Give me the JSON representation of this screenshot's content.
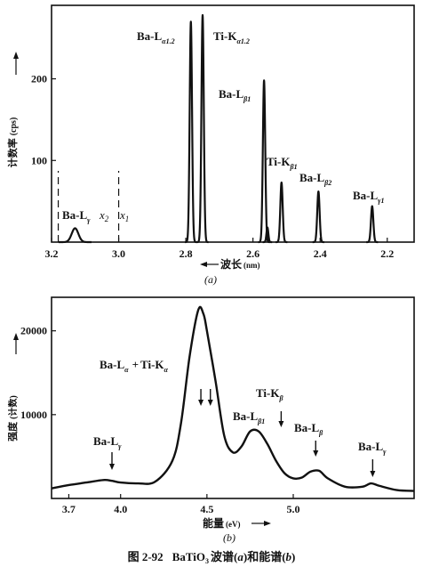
{
  "chart_data": [
    {
      "type": "line",
      "subtitle": "(a)",
      "xlabel": "波长",
      "xunit": "(nm)",
      "ylabel": "计数率",
      "yunit": "(cps)",
      "xlim": [
        3.2,
        2.12
      ],
      "ylim": [
        0,
        290
      ],
      "x_reversed": true,
      "x_ticks": [
        "3.2",
        "3.0",
        "2.8",
        "2.6",
        "2.4",
        "2.2"
      ],
      "y_ticks": [
        "100",
        "200"
      ],
      "marker_lines": [
        {
          "x": 3.18,
          "label": ""
        },
        {
          "x": 3.0,
          "label": ""
        }
      ],
      "marker_labels": [
        "x",
        "2",
        "x",
        "1"
      ],
      "peaks": [
        {
          "x": 3.13,
          "y": 17,
          "width": 0.014,
          "label": "Ba-L",
          "label_sub": "γ"
        },
        {
          "x": 2.785,
          "y": 270,
          "width": 0.005,
          "label": "Ba-L",
          "label_sub": "α1.2"
        },
        {
          "x": 2.75,
          "y": 278,
          "width": 0.005,
          "label": "Ti-K",
          "label_sub": "α1.2"
        },
        {
          "x": 2.567,
          "y": 198,
          "width": 0.005,
          "label": "Ba-L",
          "label_sub": "β1"
        },
        {
          "x": 2.557,
          "y": 18,
          "width": 0.004,
          "label": "",
          "label_sub": ""
        },
        {
          "x": 2.515,
          "y": 73,
          "width": 0.005,
          "label": "Ti-K",
          "label_sub": "β1"
        },
        {
          "x": 2.405,
          "y": 62,
          "width": 0.005,
          "label": "Ba-L",
          "label_sub": "β2"
        },
        {
          "x": 2.245,
          "y": 44,
          "width": 0.005,
          "label": "Ba-L",
          "label_sub": "γ1"
        }
      ]
    },
    {
      "type": "line",
      "subtitle": "(b)",
      "xlabel": "能量",
      "xunit": "(eV)",
      "ylabel": "强度",
      "yunit": "(计数)",
      "xlim": [
        3.6,
        5.7
      ],
      "ylim": [
        0,
        24000
      ],
      "x_ticks": [
        "3.7",
        "4.0",
        "4.5",
        "5.0"
      ],
      "x_tick_values": [
        3.7,
        4.0,
        4.5,
        5.0
      ],
      "y_ticks": [
        "10000",
        "20000"
      ],
      "x": [
        3.6,
        3.7,
        3.8,
        3.9,
        3.95,
        4.0,
        4.1,
        4.2,
        4.3,
        4.35,
        4.4,
        4.45,
        4.48,
        4.5,
        4.55,
        4.6,
        4.65,
        4.7,
        4.75,
        4.8,
        4.85,
        4.9,
        4.95,
        5.0,
        5.05,
        5.1,
        5.15,
        5.2,
        5.3,
        5.4,
        5.45,
        5.5,
        5.6,
        5.7
      ],
      "y": [
        1200,
        1600,
        1900,
        2200,
        2100,
        1900,
        1800,
        2000,
        4500,
        9000,
        17000,
        22500,
        22000,
        20000,
        14000,
        7500,
        5500,
        6200,
        8000,
        8000,
        6500,
        4500,
        3000,
        2400,
        2500,
        3200,
        3300,
        2400,
        1400,
        1400,
        1800,
        1500,
        1000,
        900
      ],
      "annotations": [
        {
          "label": "Ba-L",
          "label_sub": "α",
          "x": 4.48
        },
        {
          "label": "Ti-K",
          "label_sub": "α",
          "x": 4.51
        },
        {
          "label": "Ba-L",
          "label_sub": "β1",
          "x": 4.84
        },
        {
          "label": "Ti-K",
          "label_sub": "β",
          "x": 4.93
        },
        {
          "label": "Ba-L",
          "label_sub": "β",
          "x": 5.13
        },
        {
          "label": "Ba-L",
          "label_sub": "γ",
          "x": 3.95
        },
        {
          "label": "Ba-L",
          "label_sub": "γ",
          "x": 5.46
        }
      ]
    }
  ],
  "caption": {
    "figure_no": "图 2-92",
    "compound": "BaTiO",
    "compound_sub": "3",
    "text_1": "波谱(",
    "a": "a",
    "text_2": ")和能谱(",
    "b": "b",
    "text_3": ")"
  },
  "chart_b_combined_label": {
    "part1": "Ba-L",
    "part1_sub": "α",
    "plus": "+",
    "part2": "Ti-K",
    "part2_sub": "α"
  }
}
